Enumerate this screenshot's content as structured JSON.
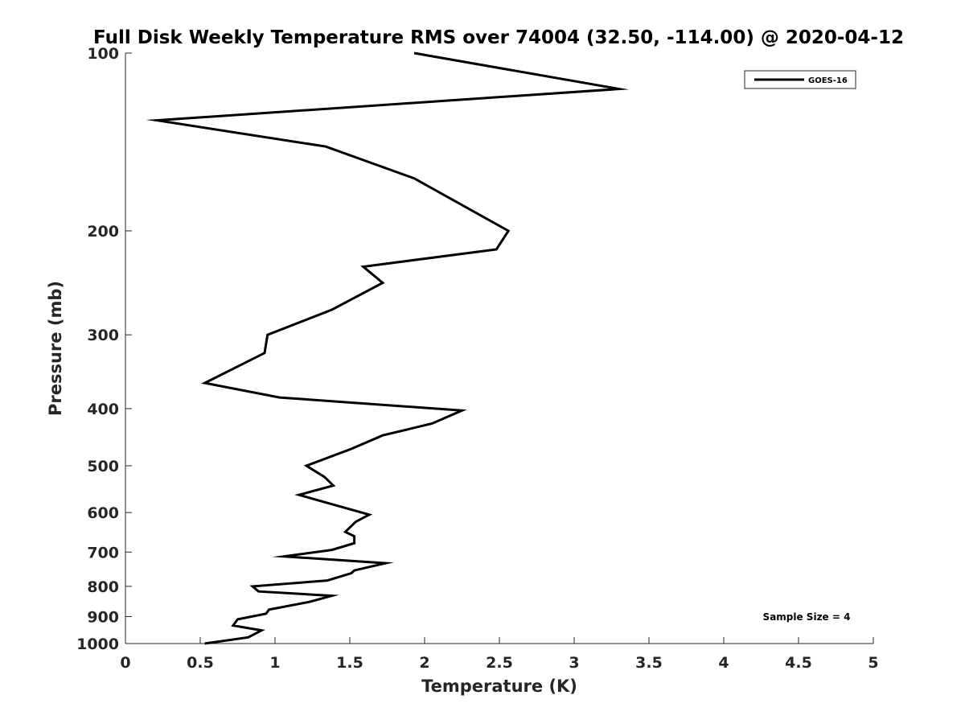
{
  "chart_data": {
    "type": "line",
    "title": "Full Disk Weekly Temperature RMS over 74004 (32.50, -114.00) @ 2020-04-12",
    "xlabel": "Temperature (K)",
    "ylabel": "Pressure (mb)",
    "xlim": [
      0,
      5
    ],
    "ylim": [
      100,
      1000
    ],
    "y_scale": "log",
    "y_reversed": true,
    "x_ticks": [
      "0",
      "0.5",
      "1",
      "1.5",
      "2",
      "2.5",
      "3",
      "3.5",
      "4",
      "4.5",
      "5"
    ],
    "y_ticks": [
      "100",
      "200",
      "300",
      "400",
      "500",
      "600",
      "700",
      "800",
      "900",
      "1000"
    ],
    "grid": false,
    "legend": {
      "position": "top-right",
      "entries": [
        "GOES-16"
      ]
    },
    "annotation": "Sample Size = 4",
    "line_color": "#000000",
    "series": [
      {
        "name": "GOES-16",
        "x": [
          1.93,
          3.3,
          0.21,
          1.34,
          1.93,
          2.56,
          2.48,
          1.59,
          1.72,
          1.38,
          0.95,
          0.93,
          0.53,
          1.03,
          2.25,
          2.05,
          1.72,
          1.51,
          1.21,
          1.33,
          1.39,
          1.16,
          1.63,
          1.54,
          1.47,
          1.53,
          1.53,
          1.38,
          1.06,
          1.74,
          1.53,
          1.51,
          1.35,
          0.85,
          0.89,
          1.38,
          1.23,
          0.96,
          0.94,
          0.75,
          0.72,
          0.91,
          0.82,
          0.53
        ],
        "y": [
          100,
          115,
          130,
          144,
          163,
          200,
          215,
          230,
          245,
          272,
          300,
          322,
          362,
          383,
          403,
          424,
          444,
          468,
          500,
          522,
          540,
          560,
          605,
          622,
          647,
          658,
          676,
          694,
          712,
          731,
          752,
          760,
          782,
          800,
          816,
          830,
          850,
          876,
          890,
          910,
          932,
          950,
          976,
          1000
        ]
      }
    ]
  }
}
